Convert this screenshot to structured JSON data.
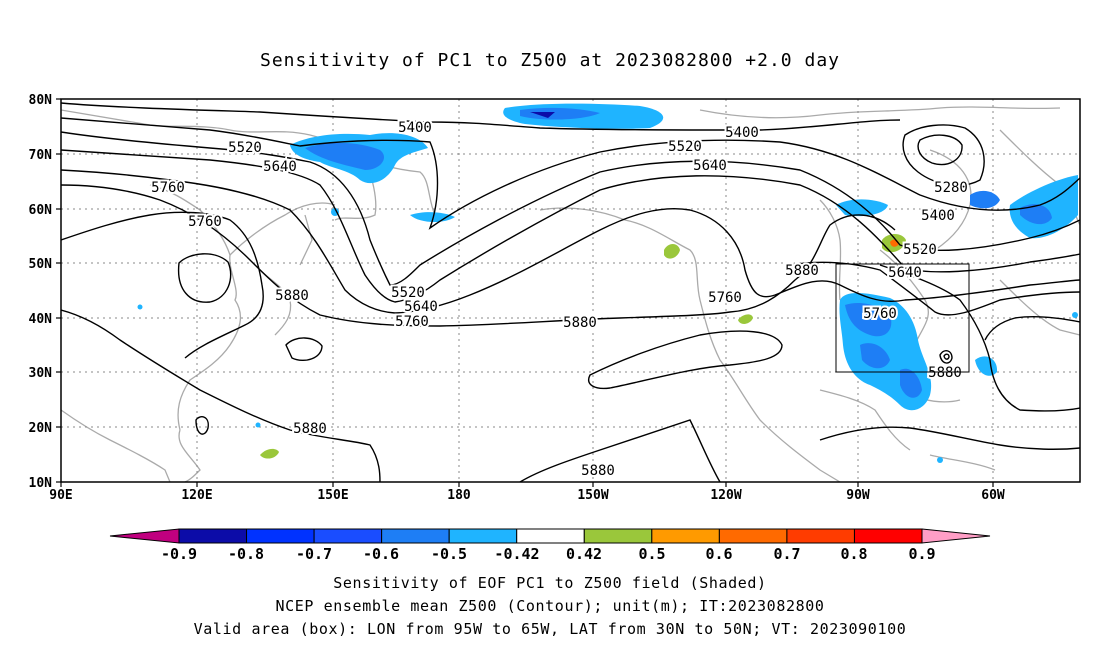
{
  "title": "Sensitivity of PC1 to Z500 at 2023082800 +2.0 day",
  "axes": {
    "lat_labels": [
      "80N",
      "70N",
      "60N",
      "50N",
      "40N",
      "30N",
      "20N",
      "10N"
    ],
    "lon_labels": [
      "90E",
      "120E",
      "150E",
      "180",
      "150W",
      "120W",
      "90W",
      "60W"
    ]
  },
  "contour_labels": [
    "5400",
    "5520",
    "5640",
    "5760",
    "5760",
    "5520",
    "5640",
    "5760",
    "5880",
    "5880",
    "5400",
    "5520",
    "5640",
    "5760",
    "5880",
    "5880",
    "5280",
    "5400",
    "5520",
    "5640",
    "5760",
    "5880",
    "5880"
  ],
  "colorbar": {
    "ticks": [
      "-0.9",
      "-0.8",
      "-0.7",
      "-0.6",
      "-0.5",
      "-0.42",
      "0.42",
      "0.5",
      "0.6",
      "0.7",
      "0.8",
      "0.9"
    ],
    "colors": [
      "#c0007f",
      "#0c0ca8",
      "#0032ff",
      "#1a4dff",
      "#1e7ef5",
      "#1fb4ff",
      "#ffffff",
      "#9ac73b",
      "#ff9a00",
      "#ff6a00",
      "#ff3c00",
      "#ff0000",
      "#ff9ec6"
    ]
  },
  "footer": {
    "line1": "Sensitivity of EOF PC1 to Z500 field (Shaded)",
    "line2": "NCEP ensemble mean Z500 (Contour); unit(m); IT:2023082800",
    "line3": "Valid area (box): LON from 95W to 65W, LAT from 30N to 50N; VT: 2023090100"
  }
}
